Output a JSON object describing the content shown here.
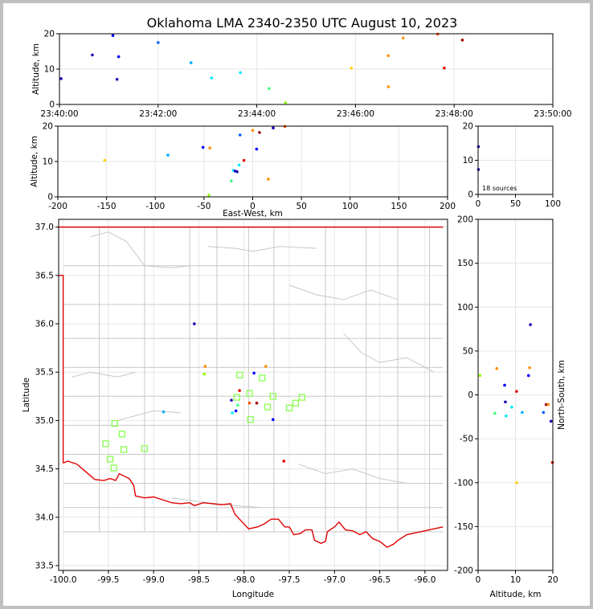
{
  "title": "Oklahoma LMA 2340-2350 UTC August 10, 2023",
  "source_count_label": "18 sources",
  "colors": {
    "border": "#e00000",
    "county": "#c8c8c8",
    "grid": "#e6e6e6",
    "station": "#7fff40",
    "sources": [
      "#1f00b8",
      "#0000ff",
      "#0060ff",
      "#00b0ff",
      "#00e8ff",
      "#40ff80",
      "#90ff00",
      "#ffd000",
      "#ff9000",
      "#ff5000",
      "#e00000",
      "#a00000"
    ]
  },
  "chart_data": [
    {
      "id": "time_alt",
      "type": "scatter",
      "xlabel": "",
      "ylabel": "Altitude, km",
      "xlim": [
        "23:40:00",
        "23:50:00"
      ],
      "ylim": [
        0,
        20
      ],
      "xticks": [
        "23:40:00",
        "23:42:00",
        "23:44:00",
        "23:46:00",
        "23:48:00",
        "23:50:00"
      ],
      "yticks": [
        0,
        10,
        20
      ],
      "grid": true,
      "points": [
        {
          "t": "23:40:02",
          "alt": 7.3,
          "c": 0
        },
        {
          "t": "23:40:40",
          "alt": 14.0,
          "c": 0
        },
        {
          "t": "23:41:05",
          "alt": 19.5,
          "c": 1
        },
        {
          "t": "23:41:10",
          "alt": 7.1,
          "c": 0
        },
        {
          "t": "23:41:12",
          "alt": 13.5,
          "c": 1
        },
        {
          "t": "23:42:00",
          "alt": 17.5,
          "c": 2
        },
        {
          "t": "23:42:40",
          "alt": 11.8,
          "c": 3
        },
        {
          "t": "23:43:05",
          "alt": 7.5,
          "c": 4
        },
        {
          "t": "23:43:40",
          "alt": 9.0,
          "c": 4
        },
        {
          "t": "23:44:15",
          "alt": 4.5,
          "c": 5
        },
        {
          "t": "23:44:35",
          "alt": 0.5,
          "c": 6
        },
        {
          "t": "23:45:55",
          "alt": 10.3,
          "c": 7
        },
        {
          "t": "23:46:40",
          "alt": 13.8,
          "c": 8
        },
        {
          "t": "23:46:40",
          "alt": 5.0,
          "c": 8
        },
        {
          "t": "23:46:58",
          "alt": 18.8,
          "c": 8
        },
        {
          "t": "23:47:40",
          "alt": 19.9,
          "c": 9
        },
        {
          "t": "23:47:48",
          "alt": 10.3,
          "c": 10
        },
        {
          "t": "23:48:10",
          "alt": 18.2,
          "c": 11
        }
      ]
    },
    {
      "id": "ew_alt",
      "type": "scatter",
      "xlabel": "East-West, km",
      "ylabel": "Altitude, km",
      "xlim": [
        -200,
        200
      ],
      "ylim": [
        0,
        20
      ],
      "xticks": [
        -200,
        -150,
        -100,
        -50,
        0,
        50,
        100,
        150,
        200
      ],
      "yticks": [
        0,
        10,
        20
      ],
      "grid": true,
      "points": [
        {
          "x": -152,
          "alt": 10.3,
          "c": 7
        },
        {
          "x": -87,
          "alt": 11.8,
          "c": 3
        },
        {
          "x": -51,
          "alt": 14.0,
          "c": 1
        },
        {
          "x": -44,
          "alt": 13.8,
          "c": 8
        },
        {
          "x": -45,
          "alt": 0.5,
          "c": 6
        },
        {
          "x": -22,
          "alt": 4.5,
          "c": 5
        },
        {
          "x": -20,
          "alt": 7.5,
          "c": 4
        },
        {
          "x": -18,
          "alt": 7.3,
          "c": 0
        },
        {
          "x": -16,
          "alt": 7.1,
          "c": 0
        },
        {
          "x": -14,
          "alt": 9.0,
          "c": 4
        },
        {
          "x": -13,
          "alt": 17.5,
          "c": 2
        },
        {
          "x": -9,
          "alt": 10.3,
          "c": 10
        },
        {
          "x": 0,
          "alt": 18.8,
          "c": 8
        },
        {
          "x": 4,
          "alt": 13.5,
          "c": 1
        },
        {
          "x": 7,
          "alt": 18.2,
          "c": 11
        },
        {
          "x": 16,
          "alt": 5.0,
          "c": 8
        },
        {
          "x": 21,
          "alt": 19.5,
          "c": 0
        },
        {
          "x": 33,
          "alt": 19.9,
          "c": 9
        }
      ]
    },
    {
      "id": "count_hist",
      "type": "scatter",
      "xlabel": "",
      "ylabel": "",
      "xlim": [
        0,
        100
      ],
      "ylim": [
        0,
        20
      ],
      "xticks": [
        0,
        50,
        100
      ],
      "yticks": [
        0,
        10,
        20
      ],
      "grid": true,
      "points": [
        {
          "x": 0.5,
          "alt": 14.0,
          "c": 0
        },
        {
          "x": 0.5,
          "alt": 7.3,
          "c": 0
        }
      ]
    },
    {
      "id": "plan_view",
      "type": "scatter",
      "xlabel": "Longitude",
      "ylabel": "Latitude",
      "xlim": [
        -100.05,
        -95.75
      ],
      "ylim": [
        33.45,
        37.08
      ],
      "xticks": [
        -100.0,
        -99.5,
        -99.0,
        -98.5,
        -98.0,
        -97.5,
        -97.0,
        -96.5,
        -96.0
      ],
      "yticks": [
        33.5,
        34.0,
        34.5,
        35.0,
        35.5,
        36.0,
        36.5,
        37.0
      ],
      "grid": true,
      "stations": [
        [
          -99.43,
          34.97
        ],
        [
          -99.35,
          34.86
        ],
        [
          -99.53,
          34.76
        ],
        [
          -99.33,
          34.7
        ],
        [
          -99.48,
          34.6
        ],
        [
          -99.44,
          34.51
        ],
        [
          -99.1,
          34.71
        ],
        [
          -98.08,
          35.24
        ],
        [
          -98.05,
          35.47
        ],
        [
          -97.94,
          35.28
        ],
        [
          -97.93,
          35.01
        ],
        [
          -97.8,
          35.44
        ],
        [
          -97.74,
          35.14
        ],
        [
          -97.68,
          35.25
        ],
        [
          -97.5,
          35.13
        ],
        [
          -97.43,
          35.18
        ],
        [
          -97.36,
          35.24
        ]
      ],
      "points": [
        {
          "lon": -98.55,
          "lat": 36.0,
          "c": 0
        },
        {
          "lon": -98.43,
          "lat": 35.56,
          "c": 8
        },
        {
          "lon": -98.44,
          "lat": 35.48,
          "c": 6
        },
        {
          "lon": -98.89,
          "lat": 35.09,
          "c": 3
        },
        {
          "lon": -98.14,
          "lat": 35.21,
          "c": 0
        },
        {
          "lon": -98.13,
          "lat": 35.08,
          "c": 4
        },
        {
          "lon": -98.09,
          "lat": 35.1,
          "c": 1
        },
        {
          "lon": -98.07,
          "lat": 35.16,
          "c": 5
        },
        {
          "lon": -98.05,
          "lat": 35.31,
          "c": 10
        },
        {
          "lon": -97.94,
          "lat": 35.18,
          "c": 9
        },
        {
          "lon": -97.89,
          "lat": 35.49,
          "c": 1
        },
        {
          "lon": -97.86,
          "lat": 35.18,
          "c": 11
        },
        {
          "lon": -97.76,
          "lat": 35.56,
          "c": 8
        },
        {
          "lon": -97.68,
          "lat": 35.01,
          "c": 1
        },
        {
          "lon": -97.56,
          "lat": 34.58,
          "c": 10
        }
      ]
    },
    {
      "id": "alt_ns",
      "type": "scatter",
      "xlabel": "Altitude, km",
      "ylabel": "North-South, km",
      "xlim": [
        0,
        20
      ],
      "ylim": [
        -200,
        200
      ],
      "xticks": [
        0,
        10,
        20
      ],
      "yticks": [
        -200,
        -150,
        -100,
        -50,
        0,
        50,
        100,
        150,
        200
      ],
      "grid": true,
      "points": [
        {
          "alt": 0.5,
          "y": 22,
          "c": 6
        },
        {
          "alt": 4.5,
          "y": -21,
          "c": 5
        },
        {
          "alt": 5.0,
          "y": 30,
          "c": 8
        },
        {
          "alt": 7.1,
          "y": 11,
          "c": 1
        },
        {
          "alt": 7.3,
          "y": -8,
          "c": 0
        },
        {
          "alt": 7.5,
          "y": -24,
          "c": 4
        },
        {
          "alt": 9.0,
          "y": -14,
          "c": 4
        },
        {
          "alt": 10.3,
          "y": -100,
          "c": 7
        },
        {
          "alt": 10.3,
          "y": 4,
          "c": 10
        },
        {
          "alt": 11.8,
          "y": -20,
          "c": 3
        },
        {
          "alt": 13.5,
          "y": 22,
          "c": 1
        },
        {
          "alt": 13.8,
          "y": 31,
          "c": 8
        },
        {
          "alt": 14.0,
          "y": 80,
          "c": 0
        },
        {
          "alt": 17.5,
          "y": -20,
          "c": 2
        },
        {
          "alt": 18.2,
          "y": -11,
          "c": 11
        },
        {
          "alt": 18.8,
          "y": -11,
          "c": 8
        },
        {
          "alt": 19.5,
          "y": -30,
          "c": 0
        },
        {
          "alt": 19.9,
          "y": -77,
          "c": 10
        }
      ]
    }
  ]
}
